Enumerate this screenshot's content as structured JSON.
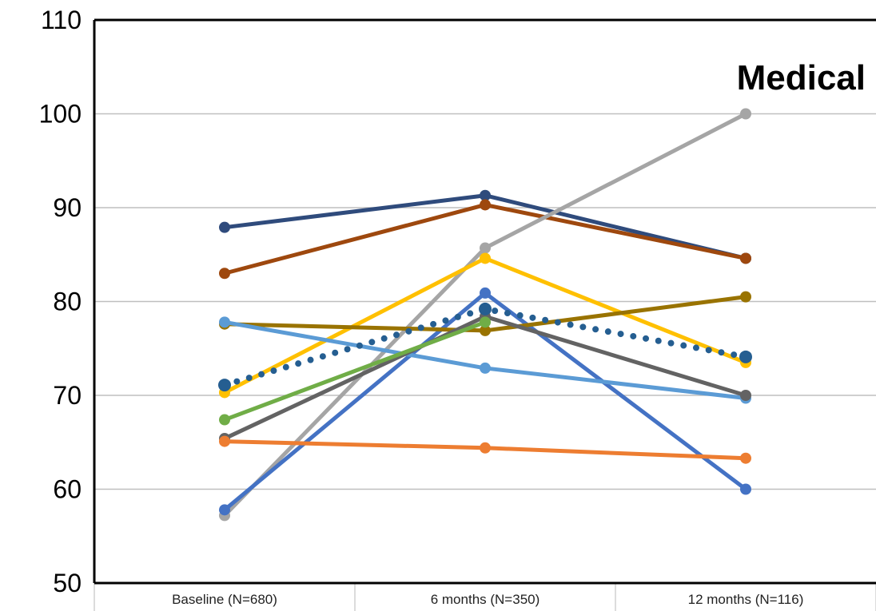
{
  "chart_data": {
    "type": "line",
    "title": "Medical",
    "xlabel": "",
    "ylabel": "",
    "categories": [
      "Baseline (N=680)",
      "6 months (N=350)",
      "12 months (N=116)"
    ],
    "ylim": [
      50,
      110
    ],
    "yticks": [
      50,
      60,
      70,
      80,
      90,
      100,
      110
    ],
    "grid": true,
    "legend": "none",
    "series": [
      {
        "color": "#2F4B7C",
        "style": "solid",
        "values": [
          87.9,
          91.3,
          84.6
        ]
      },
      {
        "color": "#9E480E",
        "style": "solid",
        "values": [
          83.0,
          90.3,
          84.6
        ]
      },
      {
        "color": "#A5A5A5",
        "style": "solid",
        "values": [
          57.2,
          85.7,
          100.0
        ]
      },
      {
        "color": "#FFC000",
        "style": "solid",
        "values": [
          70.3,
          84.6,
          73.5
        ]
      },
      {
        "color": "#4472C4",
        "style": "solid",
        "values": [
          57.8,
          80.9,
          60.0
        ]
      },
      {
        "color": "#997300",
        "style": "solid",
        "values": [
          77.6,
          76.9,
          80.5
        ]
      },
      {
        "color": "#5B9BD5",
        "style": "solid",
        "values": [
          77.8,
          72.9,
          69.7
        ]
      },
      {
        "color": "#636363",
        "style": "solid",
        "values": [
          65.4,
          78.4,
          70.0
        ]
      },
      {
        "color": "#70AD47",
        "style": "solid",
        "values": [
          67.4,
          77.8,
          null
        ]
      },
      {
        "color": "#ED7D31",
        "style": "solid",
        "values": [
          65.1,
          64.4,
          63.3
        ]
      },
      {
        "color": "#255E91",
        "style": "dotted",
        "values": [
          71.1,
          79.2,
          74.1
        ]
      }
    ]
  }
}
